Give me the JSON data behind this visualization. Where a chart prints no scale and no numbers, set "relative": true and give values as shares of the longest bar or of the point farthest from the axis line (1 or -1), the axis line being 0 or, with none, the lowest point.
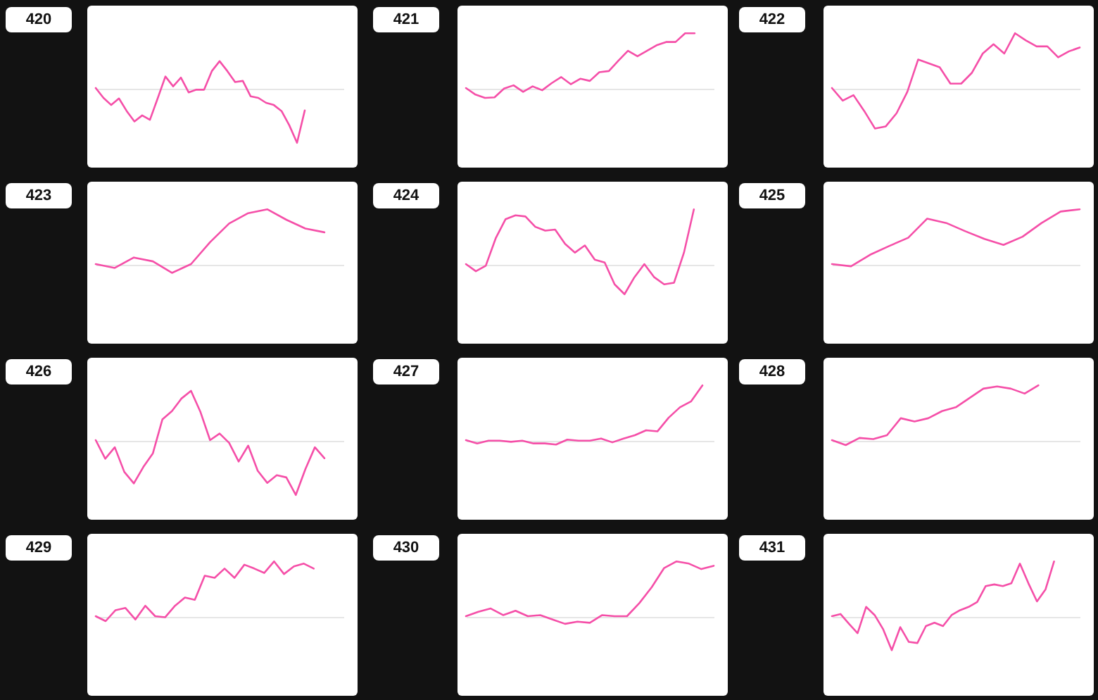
{
  "chart_data": [
    {
      "type": "line",
      "title": "420",
      "relative": true,
      "categories": [
        null,
        null,
        null,
        null,
        null,
        null,
        null,
        null,
        null,
        null,
        null,
        null,
        null,
        null,
        null,
        null,
        null,
        null,
        null,
        null,
        null,
        null,
        null,
        null,
        null,
        null,
        null,
        null,
        null,
        null,
        null,
        null,
        null
      ],
      "series": [
        {
          "color": "#f54fa8",
          "values": [
            0,
            -0.18,
            -0.31,
            -0.19,
            -0.42,
            -0.61,
            -0.5,
            -0.58,
            -0.19,
            0.21,
            0.03,
            0.19,
            -0.08,
            -0.03,
            -0.03,
            0.31,
            0.49,
            0.31,
            0.11,
            0.13,
            -0.15,
            -0.18,
            -0.27,
            -0.31,
            -0.42,
            -0.68,
            -1,
            -0.41,
            null,
            null,
            null,
            null,
            null
          ]
        }
      ]
    },
    {
      "type": "line",
      "title": "421",
      "relative": true,
      "categories": [
        null,
        null,
        null,
        null,
        null,
        null,
        null,
        null,
        null,
        null,
        null,
        null,
        null,
        null,
        null,
        null,
        null,
        null,
        null,
        null,
        null,
        null,
        null,
        null,
        null,
        null,
        null
      ],
      "series": [
        {
          "color": "#f54fa8",
          "values": [
            0,
            -0.12,
            -0.18,
            -0.17,
            -0.01,
            0.05,
            -0.07,
            0.03,
            -0.04,
            0.09,
            0.2,
            0.07,
            0.17,
            0.13,
            0.29,
            0.31,
            0.5,
            0.68,
            0.58,
            0.68,
            0.78,
            0.84,
            0.84,
            1,
            1,
            null,
            null
          ]
        }
      ]
    },
    {
      "type": "line",
      "title": "422",
      "relative": true,
      "categories": [
        null,
        null,
        null,
        null,
        null,
        null,
        null,
        null,
        null,
        null,
        null,
        null,
        null,
        null,
        null,
        null,
        null,
        null,
        null,
        null,
        null,
        null,
        null,
        null
      ],
      "series": [
        {
          "color": "#f54fa8",
          "values": [
            0,
            -0.23,
            -0.13,
            -0.42,
            -0.74,
            -0.7,
            -0.46,
            -0.07,
            0.52,
            0.45,
            0.38,
            0.08,
            0.08,
            0.28,
            0.63,
            0.8,
            0.63,
            1,
            0.87,
            0.76,
            0.76,
            0.56,
            0.67,
            0.74
          ]
        }
      ]
    },
    {
      "type": "line",
      "title": "423",
      "relative": true,
      "categories": [
        null,
        null,
        null,
        null,
        null,
        null,
        null,
        null,
        null,
        null,
        null,
        null,
        null,
        null
      ],
      "series": [
        {
          "color": "#f54fa8",
          "values": [
            0,
            -0.07,
            0.12,
            0.05,
            -0.16,
            0,
            0.4,
            0.74,
            0.93,
            1,
            0.81,
            0.65,
            0.58,
            null
          ]
        }
      ]
    },
    {
      "type": "line",
      "title": "424",
      "relative": true,
      "categories": [
        null,
        null,
        null,
        null,
        null,
        null,
        null,
        null,
        null,
        null,
        null,
        null,
        null,
        null,
        null,
        null,
        null,
        null,
        null,
        null,
        null,
        null,
        null,
        null,
        null,
        null
      ],
      "series": [
        {
          "color": "#f54fa8",
          "values": [
            0,
            -0.13,
            -0.03,
            0.47,
            0.82,
            0.89,
            0.87,
            0.68,
            0.61,
            0.63,
            0.37,
            0.21,
            0.34,
            0.08,
            0.03,
            -0.37,
            -0.55,
            -0.24,
            0,
            -0.24,
            -0.37,
            -0.34,
            0.21,
            1,
            null,
            null
          ]
        }
      ]
    },
    {
      "type": "line",
      "title": "425",
      "relative": true,
      "categories": [
        null,
        null,
        null,
        null,
        null,
        null,
        null,
        null,
        null,
        null,
        null,
        null,
        null,
        null
      ],
      "series": [
        {
          "color": "#f54fa8",
          "values": [
            0,
            -0.04,
            0.17,
            0.33,
            0.48,
            0.83,
            0.75,
            0.6,
            0.46,
            0.35,
            0.5,
            0.75,
            0.96,
            1
          ]
        }
      ]
    },
    {
      "type": "line",
      "title": "426",
      "relative": true,
      "categories": [
        null,
        null,
        null,
        null,
        null,
        null,
        null,
        null,
        null,
        null,
        null,
        null,
        null,
        null,
        null,
        null,
        null,
        null,
        null,
        null,
        null,
        null,
        null,
        null,
        null,
        null,
        null
      ],
      "series": [
        {
          "color": "#f54fa8",
          "values": [
            0,
            -0.34,
            -0.13,
            -0.58,
            -0.79,
            -0.49,
            -0.24,
            0.38,
            0.53,
            0.76,
            0.9,
            0.51,
            0,
            0.12,
            -0.05,
            -0.39,
            -0.1,
            -0.56,
            -0.78,
            -0.64,
            -0.68,
            -1,
            -0.53,
            -0.13,
            -0.33,
            null,
            null
          ]
        }
      ]
    },
    {
      "type": "line",
      "title": "427",
      "relative": true,
      "categories": [
        null,
        null,
        null,
        null,
        null,
        null,
        null,
        null,
        null,
        null,
        null,
        null,
        null,
        null,
        null,
        null,
        null,
        null,
        null,
        null,
        null,
        null,
        null
      ],
      "series": [
        {
          "color": "#f54fa8",
          "values": [
            0,
            -0.06,
            -0.01,
            -0.01,
            -0.03,
            -0.01,
            -0.06,
            -0.06,
            -0.08,
            0.01,
            -0.01,
            -0.01,
            0.03,
            -0.04,
            0.03,
            0.09,
            0.18,
            0.16,
            0.41,
            0.6,
            0.71,
            1,
            null
          ]
        }
      ]
    },
    {
      "type": "line",
      "title": "428",
      "relative": true,
      "categories": [
        null,
        null,
        null,
        null,
        null,
        null,
        null,
        null,
        null,
        null,
        null,
        null,
        null,
        null,
        null,
        null,
        null,
        null,
        null
      ],
      "series": [
        {
          "color": "#f54fa8",
          "values": [
            0,
            -0.09,
            0.04,
            0.02,
            0.09,
            0.4,
            0.34,
            0.4,
            0.53,
            0.6,
            0.77,
            0.94,
            0.98,
            0.94,
            0.85,
            1,
            null,
            null,
            null
          ]
        }
      ]
    },
    {
      "type": "line",
      "title": "429",
      "relative": true,
      "categories": [
        null,
        null,
        null,
        null,
        null,
        null,
        null,
        null,
        null,
        null,
        null,
        null,
        null,
        null,
        null,
        null,
        null,
        null,
        null,
        null,
        null,
        null,
        null,
        null,
        null,
        null
      ],
      "series": [
        {
          "color": "#f54fa8",
          "values": [
            0,
            -0.09,
            0.11,
            0.15,
            -0.06,
            0.19,
            0,
            -0.02,
            0.19,
            0.34,
            0.3,
            0.74,
            0.7,
            0.87,
            0.7,
            0.94,
            0.87,
            0.79,
            1,
            0.77,
            0.91,
            0.96,
            0.87,
            null,
            null,
            null
          ]
        }
      ]
    },
    {
      "type": "line",
      "title": "430",
      "relative": true,
      "categories": [
        null,
        null,
        null,
        null,
        null,
        null,
        null,
        null,
        null,
        null,
        null,
        null,
        null,
        null,
        null,
        null,
        null,
        null,
        null,
        null,
        null
      ],
      "series": [
        {
          "color": "#f54fa8",
          "values": [
            0,
            0.08,
            0.14,
            0.02,
            0.1,
            0,
            0.02,
            -0.06,
            -0.14,
            -0.1,
            -0.12,
            0.02,
            0,
            0,
            0.24,
            0.53,
            0.88,
            1,
            0.96,
            0.86,
            0.92
          ]
        }
      ]
    },
    {
      "type": "line",
      "title": "431",
      "relative": true,
      "categories": [
        null,
        null,
        null,
        null,
        null,
        null,
        null,
        null,
        null,
        null,
        null,
        null,
        null,
        null,
        null,
        null,
        null,
        null,
        null,
        null,
        null,
        null,
        null,
        null,
        null,
        null,
        null,
        null,
        null,
        null
      ],
      "series": [
        {
          "color": "#f54fa8",
          "values": [
            0,
            0.04,
            -0.14,
            -0.31,
            0.17,
            0.02,
            -0.24,
            -0.62,
            -0.2,
            -0.47,
            -0.49,
            -0.18,
            -0.12,
            -0.18,
            0.02,
            0.11,
            0.17,
            0.26,
            0.55,
            0.58,
            0.55,
            0.6,
            0.96,
            0.6,
            0.27,
            0.49,
            1,
            null,
            null,
            null
          ]
        }
      ]
    }
  ]
}
